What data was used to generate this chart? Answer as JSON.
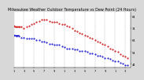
{
  "title": "Milwaukee Weather Outdoor Temperature vs Dew Point (24 Hours)",
  "title_fontsize": 3.5,
  "bg_color": "#d8d8d8",
  "plot_bg_color": "#ffffff",
  "temp_color": "#cc0000",
  "dew_color": "#0000cc",
  "ylabel_right_vals": [
    84,
    74,
    64,
    54,
    44
  ],
  "ylim": [
    41,
    88
  ],
  "xlim": [
    0,
    23
  ],
  "x_tick_positions": [
    0,
    2,
    4,
    6,
    8,
    10,
    12,
    14,
    16,
    18,
    20,
    22
  ],
  "x_tick_labels": [
    "1",
    "3",
    "5",
    "7",
    "9",
    "1",
    "3",
    "5",
    "7",
    "9",
    "1",
    "3"
  ],
  "temp_x": [
    0.0,
    0.5,
    1.0,
    1.5,
    2.0,
    2.5,
    3.0,
    3.5,
    4.0,
    4.5,
    5.0,
    5.5,
    6.0,
    6.5,
    7.0,
    7.5,
    8.0,
    8.5,
    9.0,
    9.5,
    10.0,
    10.5,
    11.0,
    11.5,
    12.0,
    12.5,
    13.0,
    13.5,
    14.0,
    14.5,
    15.0,
    15.5,
    16.0,
    16.5,
    17.0,
    17.5,
    18.0,
    18.5,
    19.0,
    19.5,
    20.0,
    20.5,
    21.0,
    21.5,
    22.0,
    22.5
  ],
  "temp_y": [
    76,
    75,
    75,
    75,
    74,
    75,
    76,
    77,
    78,
    79,
    80,
    81,
    81,
    81,
    80,
    79,
    79,
    79,
    78,
    77,
    77,
    76,
    75,
    74,
    72,
    71,
    70,
    69,
    68,
    67,
    66,
    65,
    64,
    63,
    62,
    61,
    60,
    59,
    57,
    56,
    55,
    54,
    52,
    51,
    50,
    49
  ],
  "dew_x": [
    0.0,
    0.5,
    1.0,
    1.5,
    2.0,
    2.5,
    3.0,
    3.5,
    4.0,
    4.5,
    5.0,
    5.5,
    6.0,
    6.5,
    7.0,
    7.5,
    8.0,
    8.5,
    9.0,
    9.5,
    10.0,
    10.5,
    11.0,
    11.5,
    12.0,
    12.5,
    13.0,
    13.5,
    14.0,
    14.5,
    15.0,
    15.5,
    16.0,
    16.5,
    17.0,
    17.5,
    18.0,
    18.5,
    19.0,
    19.5,
    20.0,
    20.5,
    21.0,
    21.5,
    22.0,
    22.5
  ],
  "dew_y": [
    68,
    67,
    67,
    66,
    66,
    65,
    65,
    65,
    65,
    64,
    64,
    63,
    63,
    62,
    61,
    61,
    60,
    60,
    60,
    59,
    58,
    57,
    57,
    57,
    56,
    56,
    55,
    55,
    55,
    54,
    53,
    53,
    52,
    51,
    51,
    50,
    49,
    49,
    48,
    47,
    46,
    46,
    45,
    44,
    43,
    43
  ],
  "temp_line_x": [
    0.1,
    1.3
  ],
  "temp_line_y": [
    75,
    75
  ],
  "dew_line_x": [
    0.0,
    1.0
  ],
  "dew_line_y": [
    68,
    68
  ],
  "grid_x": [
    0,
    2,
    4,
    6,
    8,
    10,
    12,
    14,
    16,
    18,
    20,
    22
  ]
}
